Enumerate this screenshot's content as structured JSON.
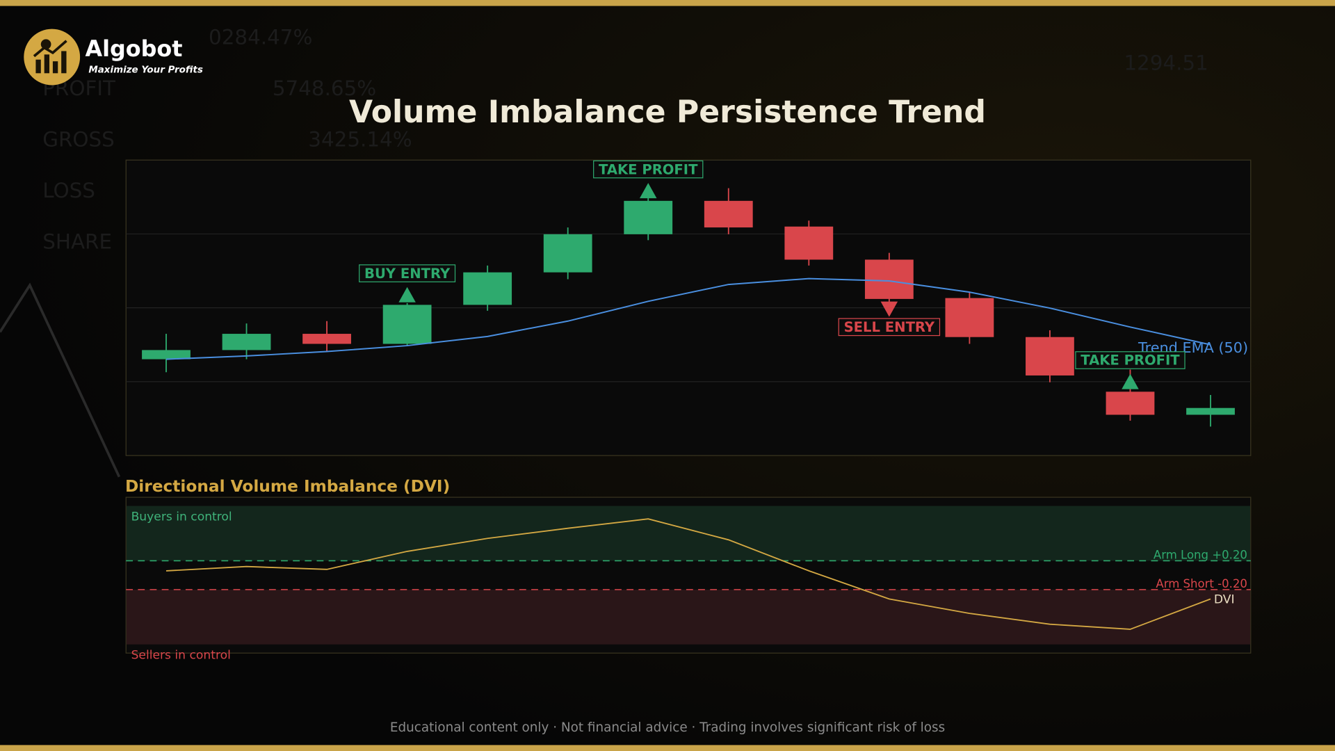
{
  "brand": {
    "name": "Algobot",
    "tagline": "Maximize Your Profits"
  },
  "background_text": [
    "0284.47%",
    "PROFIT",
    "5748.65%",
    "GROSS",
    "3425.14%",
    "LOSS",
    "SHARE",
    "1294.51"
  ],
  "footer": "Educational content only  ·  Not financial advice  ·  Trading involves significant risk of loss",
  "chart_data": [
    {
      "type": "candlestick",
      "title": "Volume Imbalance Persistence Trend",
      "ylim": [
        0,
        100
      ],
      "gridlines": [
        25,
        50,
        75
      ],
      "up_color": "#2eaa6e",
      "down_color": "#d9464b",
      "open": [
        32.6,
        35.7,
        41.2,
        37.8,
        51.0,
        62.0,
        74.9,
        86.2,
        77.5,
        66.3,
        53.3,
        40.1,
        21.6,
        13.8
      ],
      "high": [
        41.2,
        44.7,
        45.5,
        51.6,
        64.3,
        77.2,
        88.5,
        90.5,
        79.5,
        68.6,
        55.3,
        42.4,
        29.1,
        20.5
      ],
      "low": [
        28.2,
        32.6,
        35.2,
        37.2,
        49.0,
        59.7,
        72.9,
        74.9,
        64.3,
        51.3,
        37.8,
        24.8,
        11.8,
        9.8
      ],
      "close": [
        35.7,
        41.2,
        37.8,
        51.0,
        62.0,
        74.9,
        86.2,
        77.2,
        66.3,
        53.0,
        40.1,
        27.1,
        13.8,
        16.1
      ],
      "series": [
        {
          "name": "Trend EMA (50)",
          "color": "#4a8fe0",
          "values": [
            32.6,
            33.7,
            35.2,
            37.2,
            40.3,
            45.5,
            52.2,
            57.9,
            59.9,
            59.1,
            55.3,
            49.9,
            43.5,
            37.5
          ]
        }
      ],
      "annotations": [
        {
          "text": "BUY ENTRY",
          "index": 3,
          "position": "above",
          "color": "#2eaa6e"
        },
        {
          "text": "TAKE PROFIT",
          "index": 6,
          "position": "above",
          "color": "#2eaa6e"
        },
        {
          "text": "SELL ENTRY",
          "index": 9,
          "position": "below",
          "color": "#d9464b"
        },
        {
          "text": "TAKE PROFIT",
          "index": 12,
          "position": "above",
          "color": "#2eaa6e"
        }
      ]
    },
    {
      "type": "line",
      "title": "Directional Volume Imbalance (DVI)",
      "ylim": [
        -1.08,
        1.08
      ],
      "zones": [
        {
          "label": "Buyers in control",
          "range": [
            0.2,
            0.96
          ],
          "color": "#13261c"
        },
        {
          "label": "Sellers in control",
          "range": [
            -0.96,
            -0.2
          ],
          "color": "#2a1618"
        }
      ],
      "thresholds": [
        {
          "value": 0.2,
          "label": "Arm Long +0.20",
          "color": "#2eaa6e"
        },
        {
          "value": -0.2,
          "label": "Arm Short -0.20",
          "color": "#d9464b"
        }
      ],
      "series": [
        {
          "name": "DVI",
          "color": "#d4a843",
          "values": [
            0.06,
            0.12,
            0.08,
            0.33,
            0.51,
            0.65,
            0.78,
            0.49,
            0.06,
            -0.33,
            -0.53,
            -0.68,
            -0.75,
            -0.33
          ]
        }
      ]
    }
  ]
}
